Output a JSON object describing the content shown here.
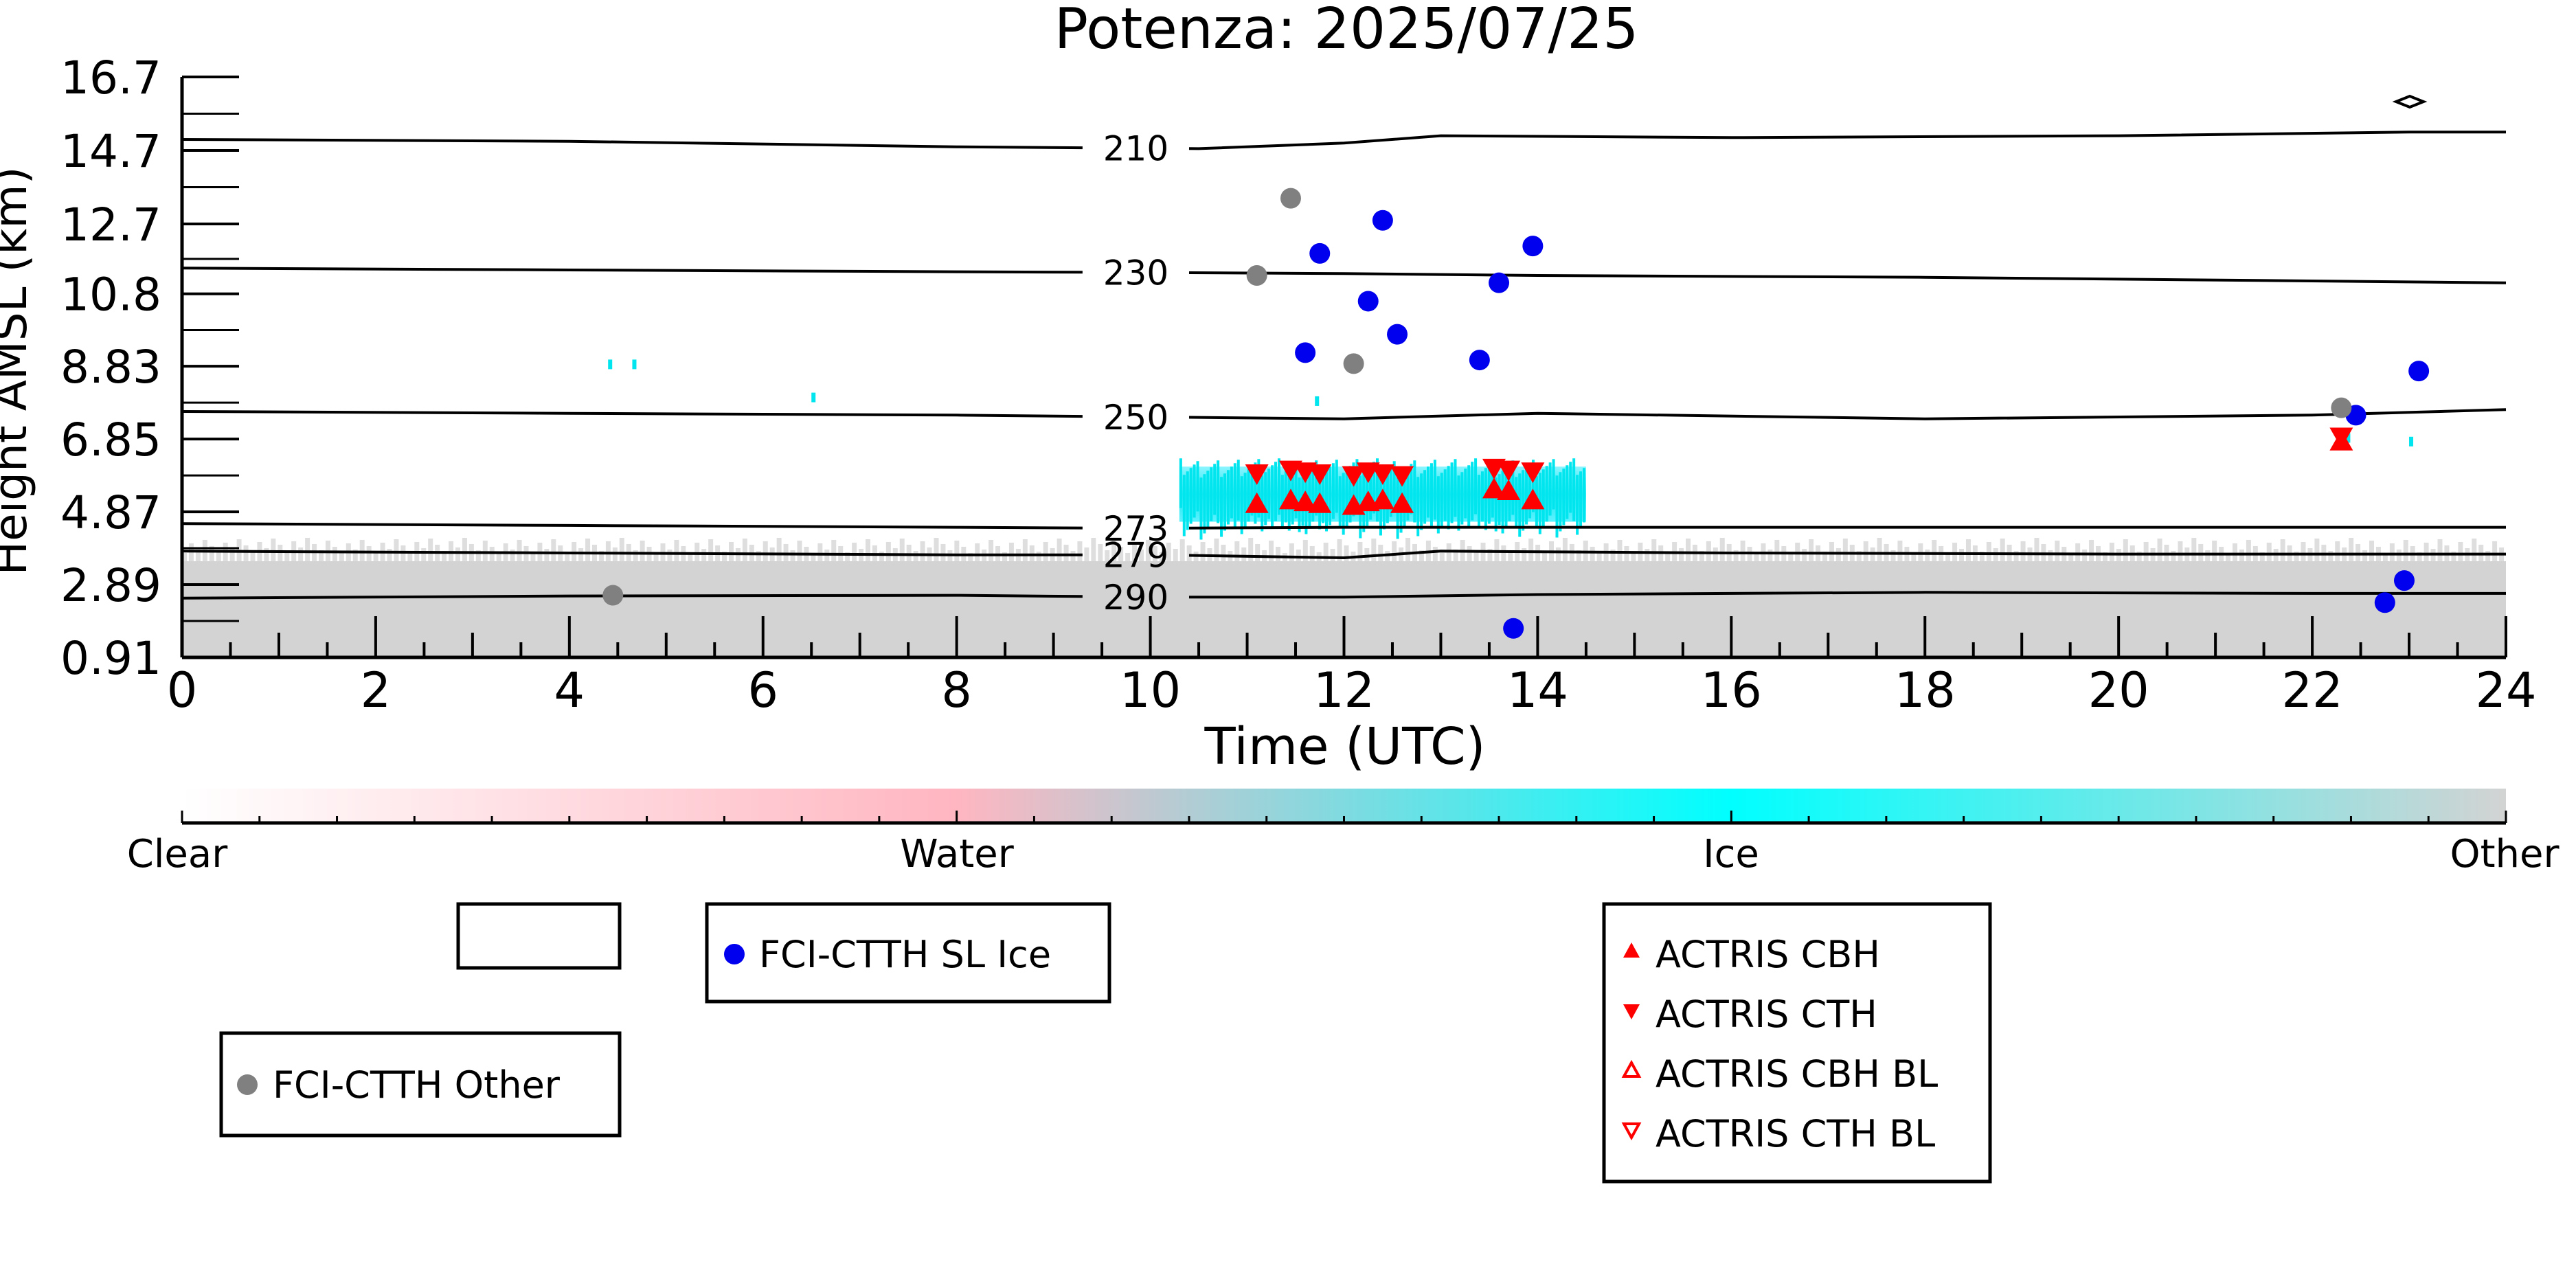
{
  "chart_data": {
    "type": "scatter",
    "title": "Potenza: 2025/07/25",
    "xlabel": "Time (UTC)",
    "ylabel": "Height AMSL (km)",
    "xlim": [
      0,
      24
    ],
    "ylim": [
      0.91,
      16.7
    ],
    "x_ticks": [
      0,
      2,
      4,
      6,
      8,
      10,
      12,
      14,
      16,
      18,
      20,
      22,
      24
    ],
    "y_ticks": [
      0.91,
      2.89,
      4.87,
      6.85,
      8.83,
      10.8,
      12.7,
      14.7,
      16.7
    ],
    "y_tick_labels": [
      "0.91",
      "2.89",
      "4.87",
      "6.85",
      "8.83",
      "10.8",
      "12.7",
      "14.7",
      "16.7"
    ],
    "temperature_contours": [
      {
        "label": "210",
        "label_x": 9.85,
        "points": [
          [
            0,
            15.0
          ],
          [
            4,
            14.95
          ],
          [
            8,
            14.8
          ],
          [
            10.5,
            14.75
          ],
          [
            12,
            14.9
          ],
          [
            13,
            15.1
          ],
          [
            16,
            15.05
          ],
          [
            20,
            15.1
          ],
          [
            23,
            15.2
          ],
          [
            24,
            15.2
          ]
        ]
      },
      {
        "label": "230",
        "label_x": 9.85,
        "points": [
          [
            0,
            11.5
          ],
          [
            4,
            11.45
          ],
          [
            8,
            11.4
          ],
          [
            10,
            11.38
          ],
          [
            12,
            11.35
          ],
          [
            14,
            11.3
          ],
          [
            18,
            11.25
          ],
          [
            22,
            11.15
          ],
          [
            24,
            11.1
          ]
        ]
      },
      {
        "label": "250",
        "label_x": 9.85,
        "points": [
          [
            0,
            7.6
          ],
          [
            4,
            7.55
          ],
          [
            8,
            7.5
          ],
          [
            10,
            7.45
          ],
          [
            12,
            7.4
          ],
          [
            14,
            7.55
          ],
          [
            18,
            7.4
          ],
          [
            22,
            7.5
          ],
          [
            24,
            7.65
          ]
        ]
      },
      {
        "label": "273",
        "label_x": 9.85,
        "points": [
          [
            0,
            4.55
          ],
          [
            4,
            4.5
          ],
          [
            8,
            4.45
          ],
          [
            10,
            4.42
          ],
          [
            12,
            4.45
          ],
          [
            14,
            4.45
          ],
          [
            18,
            4.45
          ],
          [
            22,
            4.45
          ],
          [
            24,
            4.45
          ]
        ]
      },
      {
        "label": "279",
        "label_x": 9.85,
        "points": [
          [
            0,
            3.8
          ],
          [
            4,
            3.75
          ],
          [
            8,
            3.7
          ],
          [
            10,
            3.7
          ],
          [
            12,
            3.62
          ],
          [
            13,
            3.8
          ],
          [
            16,
            3.75
          ],
          [
            20,
            3.72
          ],
          [
            24,
            3.72
          ]
        ]
      },
      {
        "label": "290",
        "label_x": 9.85,
        "points": [
          [
            0,
            2.52
          ],
          [
            4,
            2.58
          ],
          [
            8,
            2.6
          ],
          [
            10,
            2.55
          ],
          [
            12,
            2.55
          ],
          [
            14,
            2.62
          ],
          [
            18,
            2.68
          ],
          [
            22,
            2.65
          ],
          [
            24,
            2.65
          ]
        ]
      }
    ],
    "series": [
      {
        "name": "FCI-CTTH SL Ice",
        "marker": "circle",
        "color": "#0000ee",
        "points": [
          [
            11.6,
            9.2
          ],
          [
            11.75,
            11.9
          ],
          [
            12.25,
            10.6
          ],
          [
            12.4,
            12.8
          ],
          [
            12.55,
            9.7
          ],
          [
            13.4,
            9.0
          ],
          [
            13.6,
            11.1
          ],
          [
            13.75,
            1.7
          ],
          [
            13.95,
            12.1
          ],
          [
            22.45,
            7.5
          ],
          [
            22.75,
            2.4
          ],
          [
            22.95,
            3.0
          ],
          [
            23.1,
            8.7
          ]
        ]
      },
      {
        "name": "FCI-CTTH Other",
        "marker": "circle",
        "color": "#808080",
        "points": [
          [
            4.45,
            2.6
          ],
          [
            11.1,
            11.3
          ],
          [
            11.45,
            13.4
          ],
          [
            12.1,
            8.9
          ],
          [
            22.3,
            7.7
          ]
        ]
      },
      {
        "name": "ACTRIS CBH",
        "marker": "triangle-up",
        "color": "#ff0000",
        "points": [
          [
            11.1,
            5.1
          ],
          [
            11.45,
            5.2
          ],
          [
            11.6,
            5.15
          ],
          [
            11.75,
            5.1
          ],
          [
            12.1,
            5.05
          ],
          [
            12.25,
            5.15
          ],
          [
            12.4,
            5.2
          ],
          [
            12.6,
            5.1
          ],
          [
            13.55,
            5.5
          ],
          [
            13.7,
            5.45
          ],
          [
            13.95,
            5.2
          ],
          [
            22.3,
            6.8
          ]
        ]
      },
      {
        "name": "ACTRIS CTH",
        "marker": "triangle-down",
        "color": "#ff0000",
        "points": [
          [
            11.1,
            5.9
          ],
          [
            11.45,
            6.0
          ],
          [
            11.6,
            5.95
          ],
          [
            11.75,
            5.9
          ],
          [
            12.1,
            5.85
          ],
          [
            12.25,
            5.95
          ],
          [
            12.4,
            5.9
          ],
          [
            12.6,
            5.85
          ],
          [
            13.55,
            6.05
          ],
          [
            13.7,
            6.0
          ],
          [
            13.95,
            5.95
          ],
          [
            22.3,
            6.9
          ]
        ]
      },
      {
        "name": "ACTRIS CBH BL",
        "marker": "triangle-up-open",
        "color": "#ff0000",
        "points": []
      },
      {
        "name": "ACTRIS CTH BL",
        "marker": "triangle-down-open",
        "color": "#ff0000",
        "points": []
      }
    ],
    "ice_cloud_band": {
      "x_range": [
        10.3,
        14.5
      ],
      "y_range": [
        4.6,
        6.1
      ],
      "color": "#00e5ee"
    },
    "ice_specks": [
      [
        4.4,
        8.9
      ],
      [
        4.65,
        8.9
      ],
      [
        6.5,
        8.0
      ],
      [
        11.7,
        7.9
      ],
      [
        22.35,
        6.9
      ],
      [
        23.0,
        6.8
      ]
    ],
    "other_boundary_layer": {
      "y_top": 3.9,
      "color": "#d3d3d3"
    },
    "colorbar": {
      "labels": [
        "Clear",
        "Water",
        "Ice",
        "Other"
      ],
      "colors": [
        "#ffffff",
        "#ffb6c1",
        "#00ffff",
        "#d3d3d3"
      ]
    },
    "legends": [
      {
        "entries": []
      },
      {
        "entries": [
          "FCI-CTTH SL Ice"
        ]
      },
      {
        "entries": [
          "FCI-CTTH Other"
        ]
      },
      {
        "entries": [
          "ACTRIS CBH",
          "ACTRIS CTH",
          "ACTRIS CBH BL",
          "ACTRIS CTH BL"
        ]
      }
    ]
  }
}
